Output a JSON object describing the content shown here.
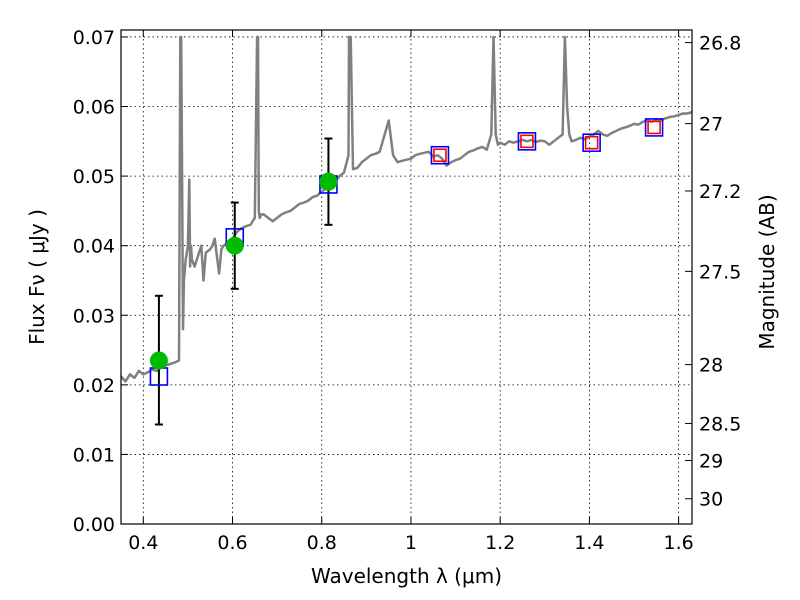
{
  "chart_data": {
    "type": "scatter",
    "xlabel": "Wavelength  λ (μm)",
    "ylabel": "Flux  Fν  ( μJy )",
    "y2label": "Magnitude (AB)",
    "xlim": [
      0.35,
      1.63
    ],
    "ylim": [
      0.0,
      0.071
    ],
    "grid": true,
    "x_ticks": [
      {
        "value": 0.4,
        "label": "0.4"
      },
      {
        "value": 0.6,
        "label": "0.6"
      },
      {
        "value": 0.8,
        "label": "0.8"
      },
      {
        "value": 1.0,
        "label": "1"
      },
      {
        "value": 1.2,
        "label": "1.2"
      },
      {
        "value": 1.4,
        "label": "1.4"
      },
      {
        "value": 1.6,
        "label": "1.6"
      }
    ],
    "y_ticks": [
      {
        "value": 0.0,
        "label": "0.00"
      },
      {
        "value": 0.01,
        "label": "0.01"
      },
      {
        "value": 0.02,
        "label": "0.02"
      },
      {
        "value": 0.03,
        "label": "0.03"
      },
      {
        "value": 0.04,
        "label": "0.04"
      },
      {
        "value": 0.05,
        "label": "0.05"
      },
      {
        "value": 0.06,
        "label": "0.06"
      },
      {
        "value": 0.07,
        "label": "0.07"
      }
    ],
    "y2_ticks": [
      {
        "value": 26.8,
        "label": "26.8"
      },
      {
        "value": 27.0,
        "label": "27"
      },
      {
        "value": 27.2,
        "label": "27.2"
      },
      {
        "value": 27.5,
        "label": "27.5"
      },
      {
        "value": 28.0,
        "label": "28"
      },
      {
        "value": 28.5,
        "label": "28.5"
      },
      {
        "value": 29.0,
        "label": "29"
      },
      {
        "value": 30.0,
        "label": "30"
      }
    ],
    "series": [
      {
        "name": "model spectrum",
        "kind": "line",
        "color": "#808080",
        "x": [
          0.35,
          0.36,
          0.37,
          0.38,
          0.39,
          0.4,
          0.41,
          0.42,
          0.43,
          0.44,
          0.45,
          0.46,
          0.47,
          0.48,
          0.483,
          0.485,
          0.487,
          0.489,
          0.491,
          0.495,
          0.5,
          0.503,
          0.505,
          0.507,
          0.509,
          0.515,
          0.52,
          0.53,
          0.535,
          0.54,
          0.55,
          0.555,
          0.56,
          0.57,
          0.575,
          0.58,
          0.59,
          0.6,
          0.61,
          0.62,
          0.63,
          0.64,
          0.65,
          0.655,
          0.657,
          0.659,
          0.661,
          0.665,
          0.67,
          0.68,
          0.69,
          0.7,
          0.71,
          0.72,
          0.73,
          0.74,
          0.75,
          0.76,
          0.77,
          0.78,
          0.79,
          0.8,
          0.81,
          0.82,
          0.83,
          0.84,
          0.85,
          0.86,
          0.861,
          0.865,
          0.87,
          0.88,
          0.89,
          0.9,
          0.91,
          0.92,
          0.93,
          0.95,
          0.96,
          0.97,
          0.98,
          1.0,
          1.01,
          1.02,
          1.04,
          1.05,
          1.06,
          1.07,
          1.08,
          1.09,
          1.1,
          1.11,
          1.12,
          1.13,
          1.14,
          1.15,
          1.16,
          1.17,
          1.18,
          1.185,
          1.19,
          1.195,
          1.2,
          1.21,
          1.22,
          1.23,
          1.24,
          1.25,
          1.26,
          1.27,
          1.28,
          1.29,
          1.3,
          1.31,
          1.32,
          1.33,
          1.34,
          1.345,
          1.35,
          1.355,
          1.36,
          1.37,
          1.38,
          1.39,
          1.4,
          1.41,
          1.42,
          1.43,
          1.44,
          1.45,
          1.46,
          1.47,
          1.48,
          1.49,
          1.5,
          1.51,
          1.52,
          1.53,
          1.54,
          1.55,
          1.56,
          1.57,
          1.58,
          1.59,
          1.6,
          1.61,
          1.62,
          1.63
        ],
        "y": [
          0.0212,
          0.0205,
          0.0215,
          0.021,
          0.022,
          0.0215,
          0.0218,
          0.0222,
          0.022,
          0.0225,
          0.0228,
          0.023,
          0.0232,
          0.0235,
          0.07,
          0.07,
          0.05,
          0.028,
          0.035,
          0.038,
          0.04,
          0.0495,
          0.037,
          0.04,
          0.038,
          0.037,
          0.038,
          0.04,
          0.035,
          0.039,
          0.0395,
          0.04,
          0.041,
          0.036,
          0.0395,
          0.04,
          0.0405,
          0.041,
          0.042,
          0.0425,
          0.0428,
          0.043,
          0.044,
          0.07,
          0.07,
          0.045,
          0.044,
          0.0445,
          0.0445,
          0.044,
          0.0435,
          0.044,
          0.0445,
          0.0448,
          0.045,
          0.0455,
          0.046,
          0.0462,
          0.0465,
          0.047,
          0.0472,
          0.0478,
          0.0482,
          0.049,
          0.0492,
          0.05,
          0.0505,
          0.053,
          0.07,
          0.07,
          0.051,
          0.0512,
          0.052,
          0.0525,
          0.053,
          0.0532,
          0.0535,
          0.058,
          0.053,
          0.052,
          0.0522,
          0.0525,
          0.053,
          0.0532,
          0.0535,
          0.0528,
          0.053,
          0.0525,
          0.0515,
          0.052,
          0.0523,
          0.0525,
          0.053,
          0.0535,
          0.0537,
          0.054,
          0.0542,
          0.0538,
          0.056,
          0.07,
          0.056,
          0.0545,
          0.0548,
          0.0545,
          0.055,
          0.0548,
          0.055,
          0.0552,
          0.055,
          0.0552,
          0.0549,
          0.0551,
          0.055,
          0.0545,
          0.055,
          0.0555,
          0.056,
          0.07,
          0.06,
          0.056,
          0.055,
          0.0552,
          0.0555,
          0.0553,
          0.0557,
          0.056,
          0.0565,
          0.056,
          0.0558,
          0.0562,
          0.0565,
          0.0568,
          0.057,
          0.0572,
          0.0575,
          0.0574,
          0.0578,
          0.058,
          0.0578,
          0.0582,
          0.058,
          0.0583,
          0.0585,
          0.0586,
          0.0588,
          0.059,
          0.059,
          0.0592
        ]
      },
      {
        "name": "model photometry",
        "kind": "marker",
        "marker": "open-square",
        "color": "#0000ff",
        "x": [
          0.435,
          0.605,
          0.815,
          1.065,
          1.26,
          1.405,
          1.545
        ],
        "y": [
          0.0212,
          0.0412,
          0.0488,
          0.053,
          0.055,
          0.0548,
          0.057
        ]
      },
      {
        "name": "observed photometry (upper)",
        "kind": "marker",
        "marker": "open-square",
        "color": "#ff0000",
        "x": [
          1.065,
          1.26,
          1.405,
          1.545
        ],
        "y": [
          0.053,
          0.055,
          0.0548,
          0.057
        ]
      },
      {
        "name": "observed fluxes",
        "kind": "errorbar",
        "marker": "circle",
        "color": "#00bb00",
        "x": [
          0.435,
          0.605,
          0.815
        ],
        "y": [
          0.0235,
          0.04,
          0.0492
        ],
        "yerr_low": [
          0.0092,
          0.0062,
          0.0062
        ],
        "yerr_high": [
          0.0093,
          0.0062,
          0.0062
        ]
      }
    ]
  }
}
